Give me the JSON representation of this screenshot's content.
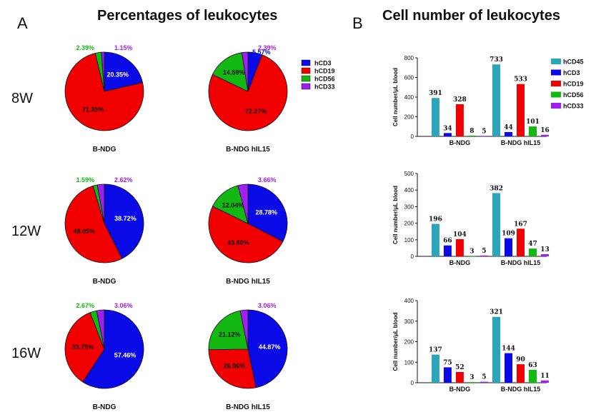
{
  "figure": {
    "title_a": "Percentages of leukocytes",
    "title_b": "Cell number of leukocytes",
    "panel_a": "A",
    "panel_b": "B",
    "rows": [
      "8W",
      "12W",
      "16W"
    ]
  },
  "colors": {
    "hCD45": "#2aa6b8",
    "hCD3": "#0a0ae6",
    "hCD19": "#f00000",
    "hCD56": "#13b813",
    "hCD33": "#a020f0"
  },
  "chart_data": [
    {
      "type": "pie",
      "row": "8W",
      "caption": "B-NDG",
      "slices": [
        {
          "name": "hCD3",
          "value": 20.35,
          "label": "20.35%"
        },
        {
          "name": "hCD19",
          "value": 71.35,
          "label": "71.35%"
        },
        {
          "name": "hCD56",
          "value": 2.39,
          "label": "2.39%"
        },
        {
          "name": "hCD33",
          "value": 1.15,
          "label": "1.15%"
        }
      ]
    },
    {
      "type": "pie",
      "row": "8W",
      "caption": "B-NDG hIL15",
      "slices": [
        {
          "name": "hCD3",
          "value": 5.57,
          "label": "5.57%"
        },
        {
          "name": "hCD19",
          "value": 72.27,
          "label": "72.27%"
        },
        {
          "name": "hCD56",
          "value": 14.59,
          "label": "14.59%"
        },
        {
          "name": "hCD33",
          "value": 2.39,
          "label": "2.39%"
        }
      ]
    },
    {
      "type": "pie",
      "row": "12W",
      "caption": "B-NDG",
      "slices": [
        {
          "name": "hCD3",
          "value": 38.72,
          "label": "38.72%"
        },
        {
          "name": "hCD19",
          "value": 48.05,
          "label": "48.05%"
        },
        {
          "name": "hCD56",
          "value": 1.59,
          "label": "1.59%"
        },
        {
          "name": "hCD33",
          "value": 2.62,
          "label": "2.62%"
        }
      ]
    },
    {
      "type": "pie",
      "row": "12W",
      "caption": "B-NDG hIL15",
      "slices": [
        {
          "name": "hCD3",
          "value": 28.78,
          "label": "28.78%"
        },
        {
          "name": "hCD19",
          "value": 43.8,
          "label": "43.80%"
        },
        {
          "name": "hCD56",
          "value": 12.04,
          "label": "12.04%"
        },
        {
          "name": "hCD33",
          "value": 3.66,
          "label": "3.66%"
        }
      ]
    },
    {
      "type": "pie",
      "row": "16W",
      "caption": "B-NDG",
      "slices": [
        {
          "name": "hCD3",
          "value": 57.46,
          "label": "57.46%"
        },
        {
          "name": "hCD19",
          "value": 33.75,
          "label": "33.75%"
        },
        {
          "name": "hCD56",
          "value": 2.67,
          "label": "2.67%"
        },
        {
          "name": "hCD33",
          "value": 3.06,
          "label": "3.06%"
        }
      ]
    },
    {
      "type": "pie",
      "row": "16W",
      "caption": "B-NDG hIL15",
      "slices": [
        {
          "name": "hCD3",
          "value": 44.87,
          "label": "44.87%"
        },
        {
          "name": "hCD19",
          "value": 26.96,
          "label": "26.96%"
        },
        {
          "name": "hCD56",
          "value": 21.12,
          "label": "21.12%"
        },
        {
          "name": "hCD33",
          "value": 3.06,
          "label": "3.06%"
        }
      ]
    },
    {
      "type": "bar",
      "row": "8W",
      "categories": [
        "B-NDG",
        "B-NDG hIL15"
      ],
      "ylabel": "Cell number/μL blood",
      "ylim": [
        0,
        800
      ],
      "yticks": [
        0,
        200,
        400,
        600,
        800
      ],
      "series": [
        {
          "name": "hCD45",
          "values": [
            391,
            733
          ]
        },
        {
          "name": "hCD3",
          "values": [
            34,
            44
          ]
        },
        {
          "name": "hCD19",
          "values": [
            328,
            533
          ]
        },
        {
          "name": "hCD56",
          "values": [
            8,
            101
          ]
        },
        {
          "name": "hCD33",
          "values": [
            5,
            16
          ]
        }
      ]
    },
    {
      "type": "bar",
      "row": "12W",
      "categories": [
        "B-NDG",
        "B-NDG hIL15"
      ],
      "ylabel": "Cell number/μL blood",
      "ylim": [
        0,
        500
      ],
      "yticks": [
        0,
        100,
        200,
        300,
        400,
        500
      ],
      "series": [
        {
          "name": "hCD45",
          "values": [
            196,
            382
          ]
        },
        {
          "name": "hCD3",
          "values": [
            66,
            109
          ]
        },
        {
          "name": "hCD19",
          "values": [
            104,
            167
          ]
        },
        {
          "name": "hCD56",
          "values": [
            3,
            47
          ]
        },
        {
          "name": "hCD33",
          "values": [
            5,
            13
          ]
        }
      ]
    },
    {
      "type": "bar",
      "row": "16W",
      "categories": [
        "B-NDG",
        "B-NDG hIL15"
      ],
      "ylabel": "Cell number/μL blood",
      "ylim": [
        0,
        400
      ],
      "yticks": [
        0,
        100,
        200,
        300,
        400
      ],
      "series": [
        {
          "name": "hCD45",
          "values": [
            137,
            321
          ]
        },
        {
          "name": "hCD3",
          "values": [
            75,
            144
          ]
        },
        {
          "name": "hCD19",
          "values": [
            52,
            90
          ]
        },
        {
          "name": "hCD56",
          "values": [
            3,
            63
          ]
        },
        {
          "name": "hCD33",
          "values": [
            5,
            11
          ]
        }
      ]
    }
  ],
  "legend_a": [
    "hCD3",
    "hCD19",
    "hCD56",
    "hCD33"
  ],
  "legend_b": [
    "hCD45",
    "hCD3",
    "hCD19",
    "hCD56",
    "hCD33"
  ]
}
